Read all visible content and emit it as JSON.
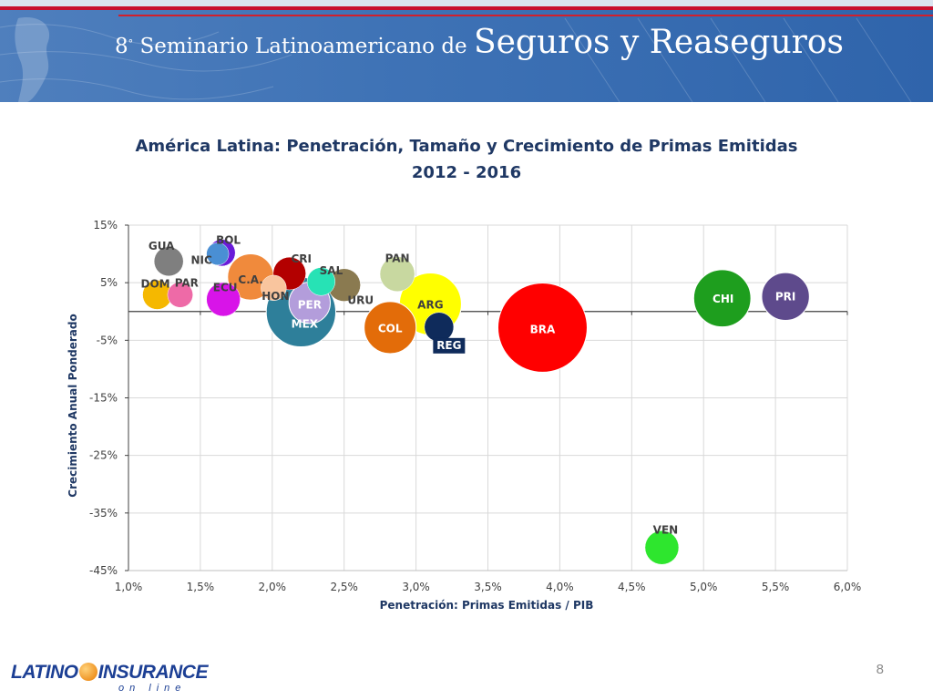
{
  "header": {
    "ordinal": "8",
    "ordinal_sup": "°",
    "title_small": " Seminario Latinoamericano de ",
    "title_big": "Seguros y Reaseguros"
  },
  "chart_data": {
    "type": "scatter",
    "title_line1": "América Latina: Penetración, Tamaño y Crecimiento de Primas Emitidas",
    "title_line2": "2012 - 2016",
    "xlabel": "Penetración: Primas Emitidas / PIB",
    "ylabel": "Crecimiento Anual Ponderado",
    "xlim": [
      1.0,
      6.0
    ],
    "ylim": [
      -45,
      15
    ],
    "x_ticks": [
      1.0,
      1.5,
      2.0,
      2.5,
      3.0,
      3.5,
      4.0,
      4.5,
      5.0,
      5.5,
      6.0
    ],
    "x_tick_labels": [
      "1,0%",
      "1,5%",
      "2,0%",
      "2,5%",
      "3,0%",
      "3,5%",
      "4,0%",
      "4,5%",
      "5,0%",
      "5,5%",
      "6,0%"
    ],
    "y_ticks": [
      15,
      5,
      -5,
      -15,
      -25,
      -35,
      -45
    ],
    "y_tick_labels": [
      "15%",
      "5%",
      "-5%",
      "-15%",
      "-25%",
      "-35%",
      "-45%"
    ],
    "grid": true,
    "points": [
      {
        "label": "GUA",
        "x": 1.28,
        "y": 8.7,
        "size": 0.6,
        "color": "#7f7f7f"
      },
      {
        "label": "NIC",
        "x": 1.62,
        "y": 10.0,
        "size": 0.35,
        "color": "#4a8fd4"
      },
      {
        "label": "BOL",
        "x": 1.65,
        "y": 10.2,
        "size": 0.5,
        "color": "#6a1bd9"
      },
      {
        "label": "C.A.",
        "x": 1.85,
        "y": 6.0,
        "size": 1.5,
        "color": "#f08a3c"
      },
      {
        "label": "DOM",
        "x": 1.2,
        "y": 2.9,
        "size": 0.6,
        "color": "#f5b800"
      },
      {
        "label": "PAR",
        "x": 1.36,
        "y": 2.9,
        "size": 0.45,
        "color": "#ee6aa7"
      },
      {
        "label": "ECU",
        "x": 1.66,
        "y": 2.1,
        "size": 0.8,
        "color": "#d814e8"
      },
      {
        "label": "HON",
        "x": 2.01,
        "y": 4.1,
        "size": 0.45,
        "color": "#f9c59e"
      },
      {
        "label": "CRI",
        "x": 2.12,
        "y": 6.6,
        "size": 0.75,
        "color": "#b30000"
      },
      {
        "label": "SAL",
        "x": 2.34,
        "y": 5.2,
        "size": 0.55,
        "color": "#27e2b5"
      },
      {
        "label": "URU",
        "x": 2.5,
        "y": 4.6,
        "size": 0.75,
        "color": "#8a7a50"
      },
      {
        "label": "PER",
        "x": 2.26,
        "y": 1.5,
        "size": 1.2,
        "color": "#b39ddb"
      },
      {
        "label": "MEX",
        "x": 2.2,
        "y": -0.1,
        "size": 3.4,
        "color": "#2e7f9a"
      },
      {
        "label": "PAN",
        "x": 2.87,
        "y": 6.5,
        "size": 0.85,
        "color": "#c8d8a0"
      },
      {
        "label": "ARG",
        "x": 3.1,
        "y": 1.3,
        "size": 2.7,
        "color": "#ffff00"
      },
      {
        "label": "COL",
        "x": 2.82,
        "y": -2.8,
        "size": 1.9,
        "color": "#e36c09"
      },
      {
        "label": "REG",
        "x": 3.16,
        "y": -2.7,
        "size": 0.6,
        "color": "#0f2b5b"
      },
      {
        "label": "BRA",
        "x": 3.88,
        "y": -2.8,
        "size": 5.6,
        "color": "#ff0000"
      },
      {
        "label": "CHI",
        "x": 5.13,
        "y": 2.3,
        "size": 2.3,
        "color": "#1e9e1e"
      },
      {
        "label": "PRI",
        "x": 5.57,
        "y": 2.6,
        "size": 1.6,
        "color": "#5e4a8c"
      },
      {
        "label": "VEN",
        "x": 4.71,
        "y": -41.0,
        "size": 0.8,
        "color": "#2ee62e"
      }
    ]
  },
  "footer": {
    "logo_part1": "LATINO",
    "logo_part2": "INSURANCE",
    "logo_sub": "on line",
    "page_number": "8"
  }
}
